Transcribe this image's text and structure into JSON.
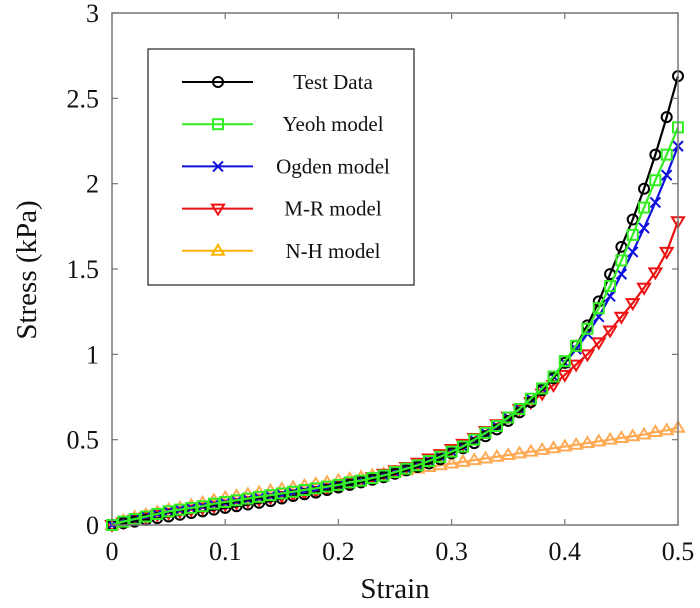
{
  "chart_data": {
    "type": "line",
    "title": "",
    "xlabel": "Strain",
    "ylabel": "Stress (kPa)",
    "xlim": [
      0,
      0.5
    ],
    "ylim": [
      0,
      3
    ],
    "xticks": [
      "0",
      "0.1",
      "0.2",
      "0.3",
      "0.4",
      "0.5"
    ],
    "yticks": [
      "0",
      "0.5",
      "1",
      "1.5",
      "2",
      "2.5",
      "3"
    ],
    "grid": false,
    "legend_position": "top-left",
    "x_start": 0,
    "x_step": 0.01,
    "series": [
      {
        "name": "Test Data",
        "color": "#000000",
        "marker": "circle",
        "values": [
          0.0,
          0.01,
          0.02,
          0.03,
          0.04,
          0.05,
          0.06,
          0.07,
          0.08,
          0.09,
          0.1,
          0.11,
          0.12,
          0.13,
          0.14,
          0.155,
          0.17,
          0.18,
          0.19,
          0.205,
          0.22,
          0.235,
          0.25,
          0.265,
          0.28,
          0.3,
          0.32,
          0.34,
          0.36,
          0.385,
          0.42,
          0.45,
          0.48,
          0.52,
          0.56,
          0.61,
          0.66,
          0.72,
          0.79,
          0.86,
          0.95,
          1.05,
          1.17,
          1.31,
          1.47,
          1.63,
          1.79,
          1.97,
          2.17,
          2.39,
          2.63
        ]
      },
      {
        "name": "Yeoh model",
        "color": "#33EE22",
        "marker": "square",
        "values": [
          0.0,
          0.02,
          0.035,
          0.05,
          0.065,
          0.08,
          0.09,
          0.1,
          0.11,
          0.125,
          0.135,
          0.145,
          0.155,
          0.165,
          0.175,
          0.185,
          0.195,
          0.205,
          0.215,
          0.225,
          0.235,
          0.25,
          0.26,
          0.275,
          0.29,
          0.31,
          0.33,
          0.35,
          0.375,
          0.4,
          0.43,
          0.46,
          0.5,
          0.54,
          0.58,
          0.63,
          0.68,
          0.74,
          0.8,
          0.87,
          0.96,
          1.05,
          1.15,
          1.27,
          1.4,
          1.55,
          1.7,
          1.86,
          2.02,
          2.17,
          2.33
        ]
      },
      {
        "name": "Ogden model",
        "color": "#1010DD",
        "marker": "x",
        "values": [
          0.0,
          0.02,
          0.035,
          0.05,
          0.065,
          0.08,
          0.09,
          0.1,
          0.11,
          0.12,
          0.13,
          0.14,
          0.15,
          0.16,
          0.17,
          0.18,
          0.19,
          0.2,
          0.21,
          0.22,
          0.235,
          0.245,
          0.26,
          0.275,
          0.29,
          0.31,
          0.33,
          0.35,
          0.375,
          0.4,
          0.43,
          0.46,
          0.5,
          0.54,
          0.58,
          0.63,
          0.68,
          0.74,
          0.8,
          0.87,
          0.95,
          1.03,
          1.12,
          1.22,
          1.34,
          1.47,
          1.6,
          1.74,
          1.89,
          2.05,
          2.22
        ]
      },
      {
        "name": "M-R model",
        "color": "#EE1111",
        "marker": "triangle-down",
        "values": [
          0.0,
          0.015,
          0.03,
          0.045,
          0.06,
          0.07,
          0.08,
          0.09,
          0.1,
          0.11,
          0.12,
          0.13,
          0.14,
          0.15,
          0.16,
          0.17,
          0.18,
          0.19,
          0.2,
          0.215,
          0.23,
          0.245,
          0.26,
          0.28,
          0.3,
          0.32,
          0.34,
          0.365,
          0.39,
          0.415,
          0.445,
          0.475,
          0.51,
          0.55,
          0.59,
          0.635,
          0.68,
          0.72,
          0.77,
          0.82,
          0.88,
          0.94,
          1.0,
          1.07,
          1.14,
          1.22,
          1.3,
          1.39,
          1.48,
          1.6,
          1.78
        ]
      },
      {
        "name": "N-H model",
        "color": "#FFAA55",
        "legend_color": "#FFB300",
        "marker": "triangle-up",
        "values": [
          0.0,
          0.025,
          0.045,
          0.06,
          0.075,
          0.09,
          0.1,
          0.115,
          0.13,
          0.145,
          0.16,
          0.17,
          0.18,
          0.19,
          0.2,
          0.21,
          0.22,
          0.23,
          0.24,
          0.25,
          0.26,
          0.27,
          0.28,
          0.29,
          0.3,
          0.31,
          0.32,
          0.33,
          0.34,
          0.35,
          0.36,
          0.37,
          0.38,
          0.39,
          0.4,
          0.41,
          0.42,
          0.43,
          0.44,
          0.45,
          0.46,
          0.47,
          0.48,
          0.49,
          0.5,
          0.51,
          0.52,
          0.53,
          0.545,
          0.555,
          0.57
        ]
      }
    ]
  }
}
